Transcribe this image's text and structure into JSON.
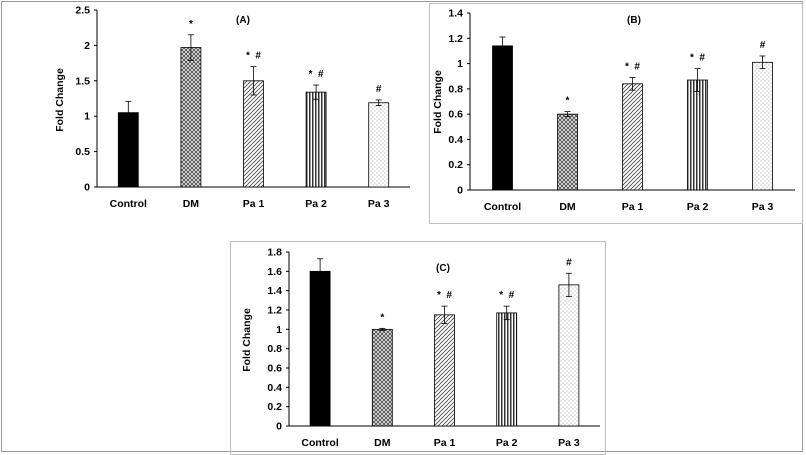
{
  "chart_data": [
    {
      "type": "bar",
      "title": "(A)",
      "ylabel": "Fold Change",
      "xlabel": "",
      "categories": [
        "Control",
        "DM",
        "Pa 1",
        "Pa 2",
        "Pa 3"
      ],
      "values": [
        1.05,
        1.97,
        1.5,
        1.34,
        1.19
      ],
      "errors": [
        0.16,
        0.18,
        0.2,
        0.1,
        0.04
      ],
      "markers": [
        "",
        "*",
        "* #",
        "* #",
        "#"
      ],
      "ylim": [
        0,
        2.5
      ],
      "yticks": [
        "0",
        "0.5",
        "1",
        "1.5",
        "2",
        "2.5"
      ],
      "grid": false,
      "legend": "none"
    },
    {
      "type": "bar",
      "title": "(B)",
      "ylabel": "Fold Change",
      "xlabel": "",
      "categories": [
        "Control",
        "DM",
        "Pa 1",
        "Pa 2",
        "Pa 3"
      ],
      "values": [
        1.14,
        0.6,
        0.84,
        0.87,
        1.01
      ],
      "errors": [
        0.07,
        0.02,
        0.05,
        0.09,
        0.05
      ],
      "markers": [
        "",
        "*",
        "* #",
        "* #",
        "#"
      ],
      "ylim": [
        0,
        1.4
      ],
      "yticks": [
        "0",
        "0.2",
        "0.4",
        "0.6",
        "0.8",
        "1",
        "1.2",
        "1.4"
      ],
      "grid": false,
      "legend": "none"
    },
    {
      "type": "bar",
      "title": "(C)",
      "ylabel": "Fold Change",
      "xlabel": "",
      "categories": [
        "Control",
        "DM",
        "Pa 1",
        "Pa 2",
        "Pa 3"
      ],
      "values": [
        1.6,
        1.0,
        1.15,
        1.17,
        1.46
      ],
      "errors": [
        0.13,
        0.01,
        0.09,
        0.07,
        0.12
      ],
      "markers": [
        "",
        "*",
        "* #",
        "* #",
        "#"
      ],
      "ylim": [
        0,
        1.8
      ],
      "yticks": [
        "0",
        "0.2",
        "0.4",
        "0.6",
        "0.8",
        "1",
        "1.2",
        "1.4",
        "1.6",
        "1.8"
      ],
      "grid": false,
      "legend": "none"
    }
  ],
  "style": {
    "bar_fills": [
      "solid-black",
      "crosshatch",
      "diagonal-lines",
      "vertical-lines",
      "dots"
    ],
    "colors": {
      "ink": "#000000",
      "frame": "#9a9a9a",
      "background": "#ffffff"
    }
  }
}
